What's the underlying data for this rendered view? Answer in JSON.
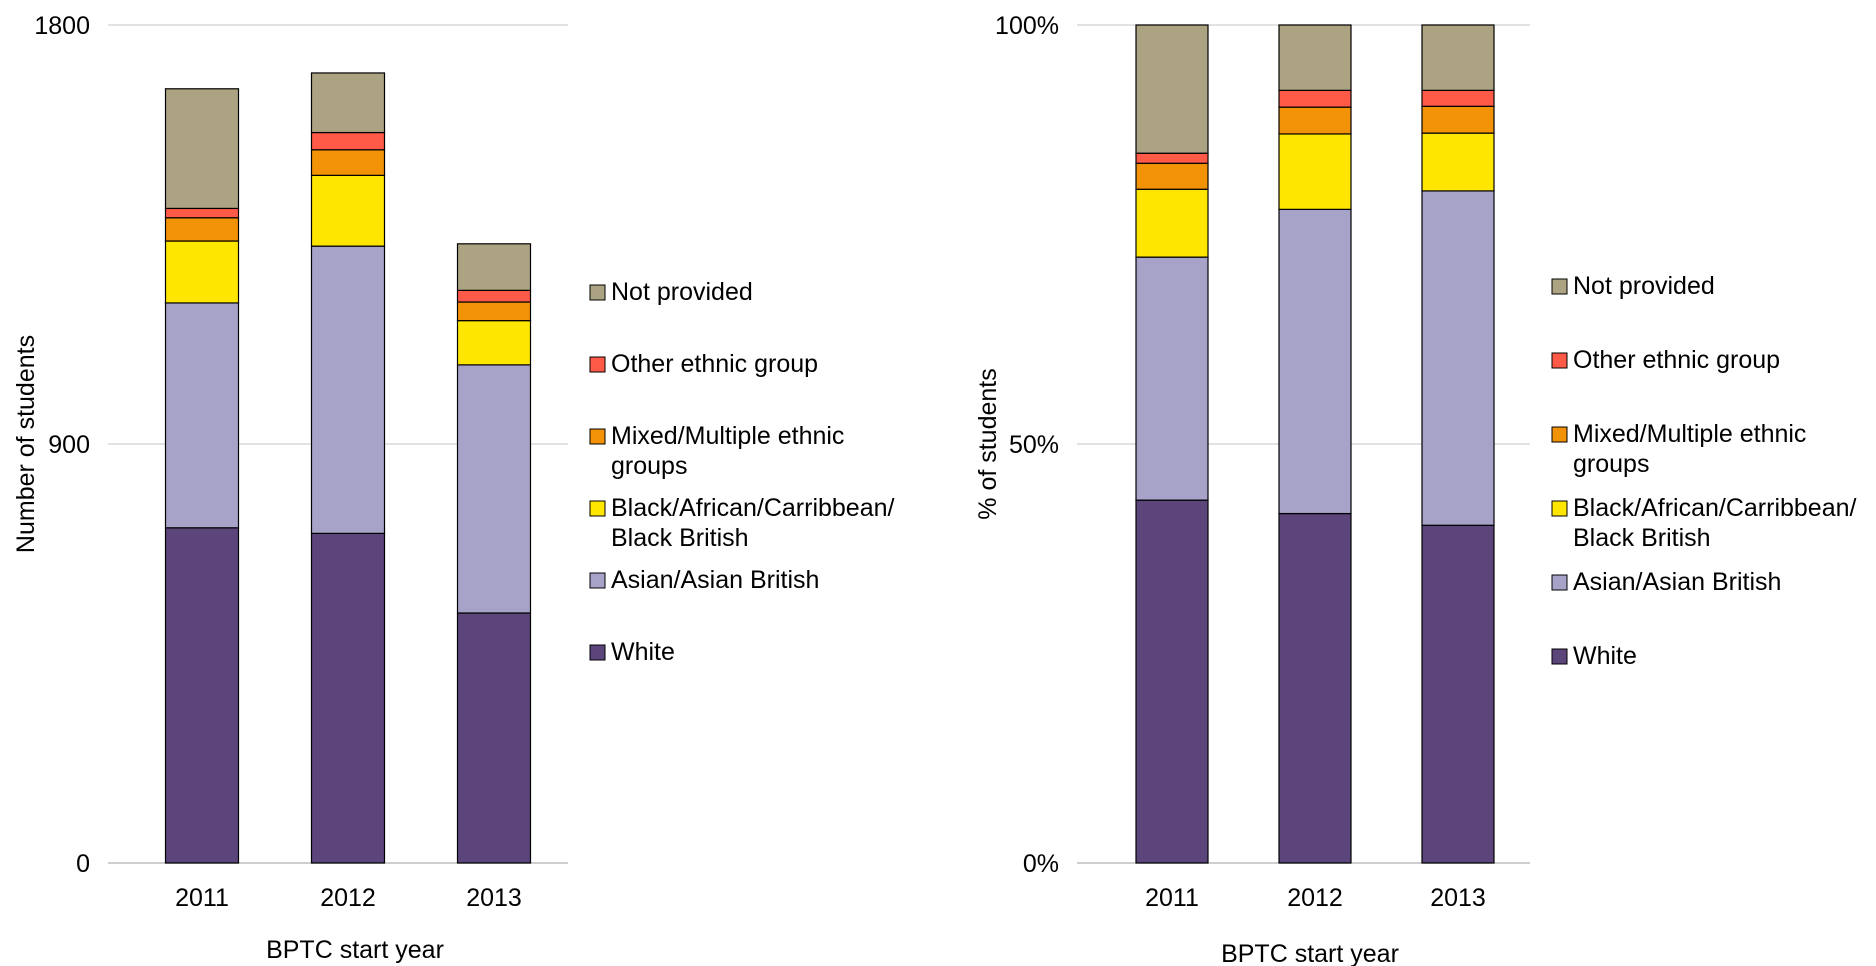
{
  "chart_data": [
    {
      "type": "bar",
      "stacked": true,
      "categories": [
        "2011",
        "2012",
        "2013"
      ],
      "series": [
        {
          "name": "White",
          "values": [
            720,
            708,
            537
          ],
          "color": "#5b457b"
        },
        {
          "name": "Asian/Asian British",
          "values": [
            483,
            617,
            533
          ],
          "color": "#a6a2c8"
        },
        {
          "name": "Black/African/Carribbean/ Black British",
          "values": [
            133,
            152,
            95
          ],
          "color": "#ffe600"
        },
        {
          "name": "Mixed/Multiple ethnic groups",
          "values": [
            50,
            55,
            40
          ],
          "color": "#f29207"
        },
        {
          "name": "Other ethnic group",
          "values": [
            20,
            37,
            25
          ],
          "color": "#ff5a48"
        },
        {
          "name": "Not provided",
          "values": [
            257,
            128,
            100
          ],
          "color": "#aba382"
        }
      ],
      "yticks": [
        "0",
        "900",
        "1800"
      ],
      "ylim": [
        0,
        1800
      ],
      "xlabel": "BPTC start year",
      "ylabel": "Number of students",
      "grid": true,
      "legend": "right"
    },
    {
      "type": "bar",
      "stacked": true,
      "categories": [
        "2011",
        "2012",
        "2013"
      ],
      "series": [
        {
          "name": "White",
          "values": [
            43.3,
            41.7,
            40.3
          ],
          "color": "#5b457b"
        },
        {
          "name": "Asian/Asian British",
          "values": [
            29.0,
            36.3,
            39.9
          ],
          "color": "#a6a2c8"
        },
        {
          "name": "Black/African/Carribbean/ Black British",
          "values": [
            8.1,
            9.0,
            6.9
          ],
          "color": "#ffe600"
        },
        {
          "name": "Mixed/Multiple ethnic groups",
          "values": [
            3.1,
            3.2,
            3.2
          ],
          "color": "#f29207"
        },
        {
          "name": "Other ethnic group",
          "values": [
            1.2,
            2.0,
            1.9
          ],
          "color": "#ff5a48"
        },
        {
          "name": "Not provided",
          "values": [
            15.3,
            7.8,
            7.8
          ],
          "color": "#aba382"
        }
      ],
      "yticks": [
        "0%",
        "50%",
        "100%"
      ],
      "ylim": [
        0,
        100
      ],
      "xlabel": "BPTC start year",
      "ylabel": "% of students",
      "grid": true,
      "legend": "right"
    }
  ]
}
